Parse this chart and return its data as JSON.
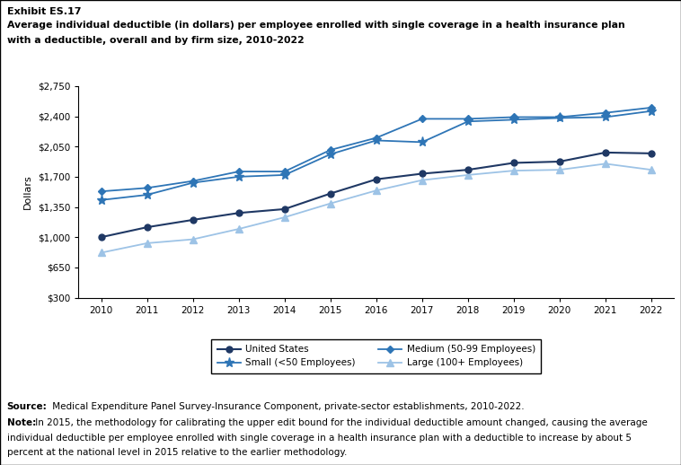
{
  "years": [
    2010,
    2011,
    2012,
    2013,
    2014,
    2015,
    2016,
    2017,
    2018,
    2019,
    2020,
    2021,
    2022
  ],
  "united_states": [
    1000,
    1115,
    1200,
    1280,
    1325,
    1505,
    1670,
    1735,
    1780,
    1860,
    1875,
    1980,
    1970
  ],
  "small": [
    1430,
    1490,
    1630,
    1700,
    1720,
    1960,
    2120,
    2100,
    2340,
    2360,
    2380,
    2390,
    2460
  ],
  "medium": [
    1530,
    1570,
    1650,
    1760,
    1760,
    2010,
    2150,
    2370,
    2370,
    2390,
    2390,
    2440,
    2500
  ],
  "large": [
    820,
    930,
    975,
    1095,
    1230,
    1390,
    1540,
    1660,
    1720,
    1770,
    1780,
    1850,
    1780
  ],
  "us_color": "#1f3864",
  "small_color": "#2e75b6",
  "medium_color": "#1f3864",
  "large_color": "#9dc3e6",
  "ylim": [
    300,
    2750
  ],
  "yticks": [
    300,
    650,
    1000,
    1350,
    1700,
    2050,
    2400,
    2750
  ],
  "ytick_labels": [
    "$300",
    "$650",
    "$1,000",
    "$1,350",
    "$1,700",
    "$2,050",
    "$2,400",
    "$2,750"
  ],
  "exhibit_label": "Exhibit ES.17",
  "title_line1": "Average individual deductible (in dollars) per employee enrolled with single coverage in a health insurance plan",
  "title_line2": "with a deductible, overall and by firm size, 2010-2022",
  "ylabel": "Dollars",
  "source_bold": "Source:",
  "source_text": " Medical Expenditure Panel Survey-Insurance Component, private-sector establishments, 2010-2022.",
  "note_bold": "Note:",
  "note_text": " In 2015, the methodology for calibrating the upper edit bound for the individual deductible amount changed, causing the average individual deductible per employee enrolled with single coverage in a health insurance plan with a deductible to increase by about 5 percent at the national level in 2015 relative to the earlier methodology.",
  "legend_entries": [
    "United States",
    "Small (<50 Employees)",
    "Medium (50-99 Employees)",
    "Large (100+ Employees)"
  ]
}
